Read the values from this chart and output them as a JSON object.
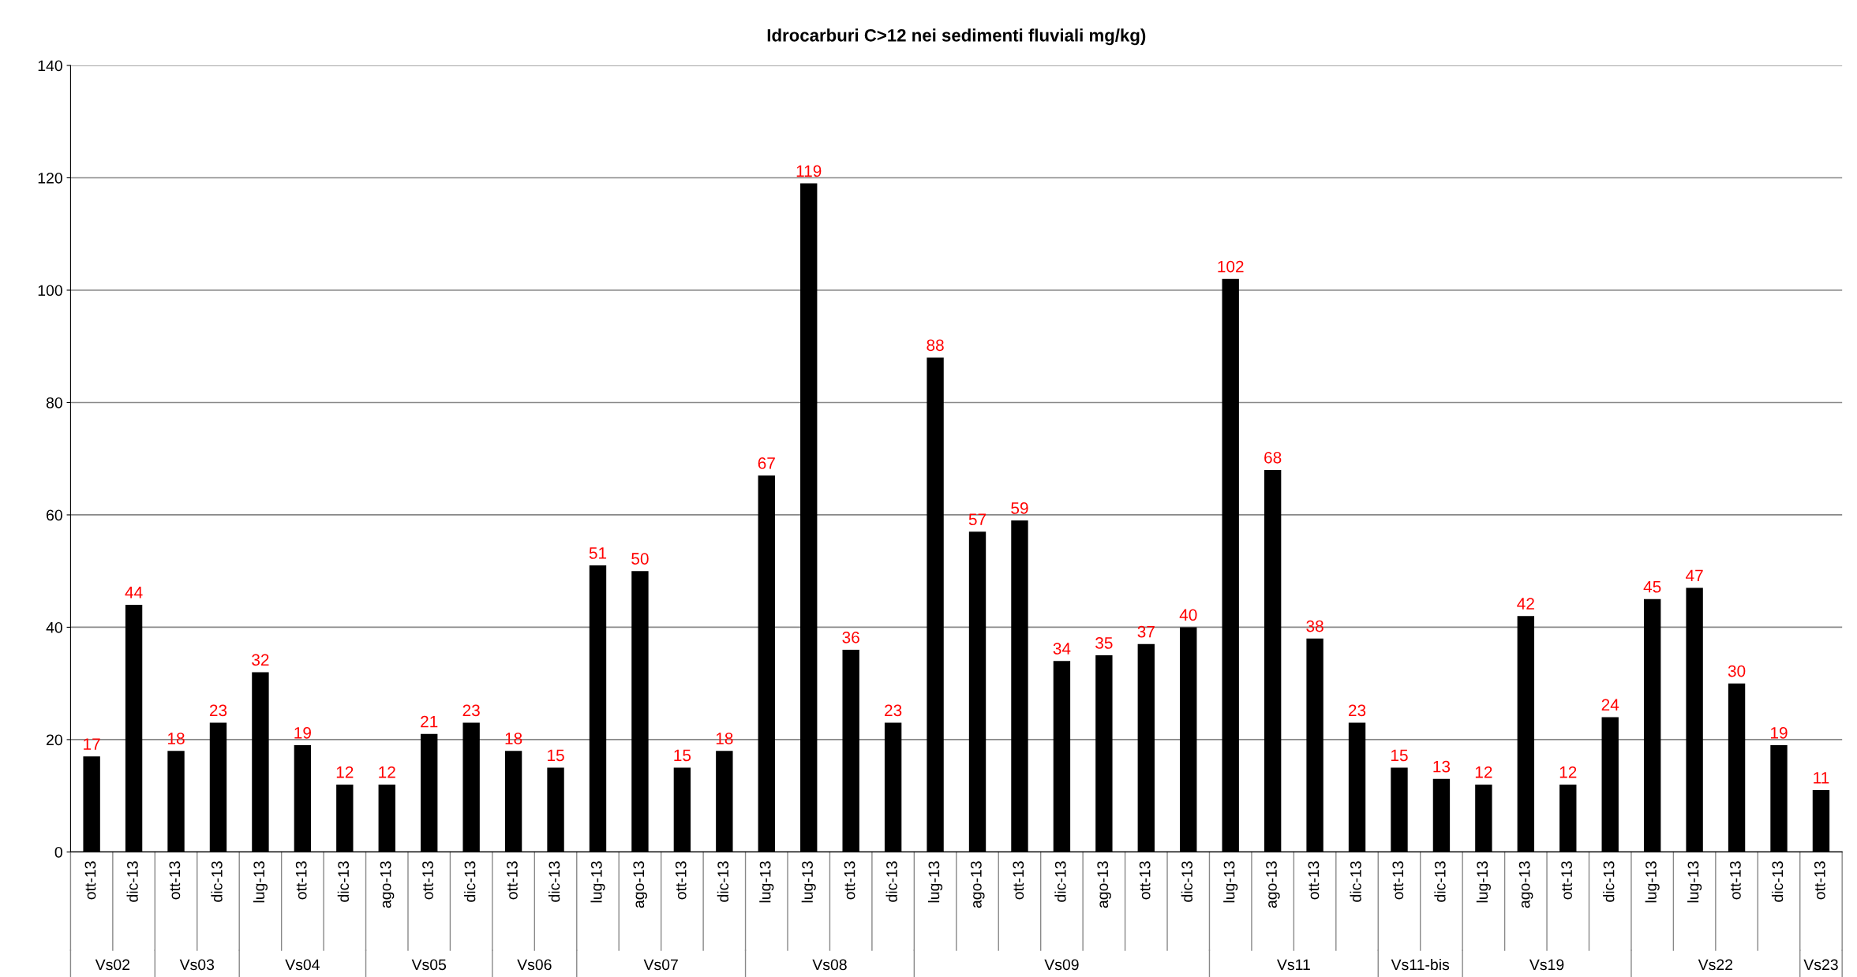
{
  "chart_data": {
    "type": "bar",
    "title": "Idrocarburi C>12 nei sedimenti fluviali mg/kg)",
    "categories": [
      "ott-13",
      "dic-13",
      "ott-13",
      "dic-13",
      "lug-13",
      "ott-13",
      "dic-13",
      "ago-13",
      "ott-13",
      "dic-13",
      "ott-13",
      "dic-13",
      "lug-13",
      "ago-13",
      "ott-13",
      "dic-13",
      "lug-13",
      "lug-13",
      "ott-13",
      "dic-13",
      "lug-13",
      "ago-13",
      "ott-13",
      "dic-13",
      "ago-13",
      "ott-13",
      "dic-13",
      "lug-13",
      "ago-13",
      "ott-13",
      "dic-13",
      "ott-13",
      "dic-13",
      "lug-13",
      "ago-13",
      "ott-13",
      "dic-13",
      "lug-13",
      "lug-13",
      "ott-13",
      "dic-13",
      "ott-13"
    ],
    "values": [
      17,
      44,
      18,
      23,
      32,
      19,
      12,
      12,
      21,
      23,
      18,
      15,
      51,
      50,
      15,
      18,
      67,
      119,
      36,
      23,
      88,
      57,
      59,
      34,
      35,
      37,
      40,
      102,
      68,
      38,
      23,
      15,
      13,
      12,
      42,
      12,
      24,
      45,
      47,
      30,
      19,
      11
    ],
    "color": "#000000",
    "data_labels": true,
    "ylim": [
      0,
      140
    ],
    "yticks": [
      0,
      20,
      40,
      60,
      80,
      100,
      120,
      140
    ],
    "grid": "y",
    "legend": false,
    "annotations": [
      "Vs02",
      "Vs03",
      "Vs04",
      "Vs05",
      "Vs06",
      "Vs07",
      "Vs08",
      "Vs09",
      "Vs11",
      "Vs11-bis",
      "Vs19",
      "Vs22",
      "Vs23"
    ]
  }
}
